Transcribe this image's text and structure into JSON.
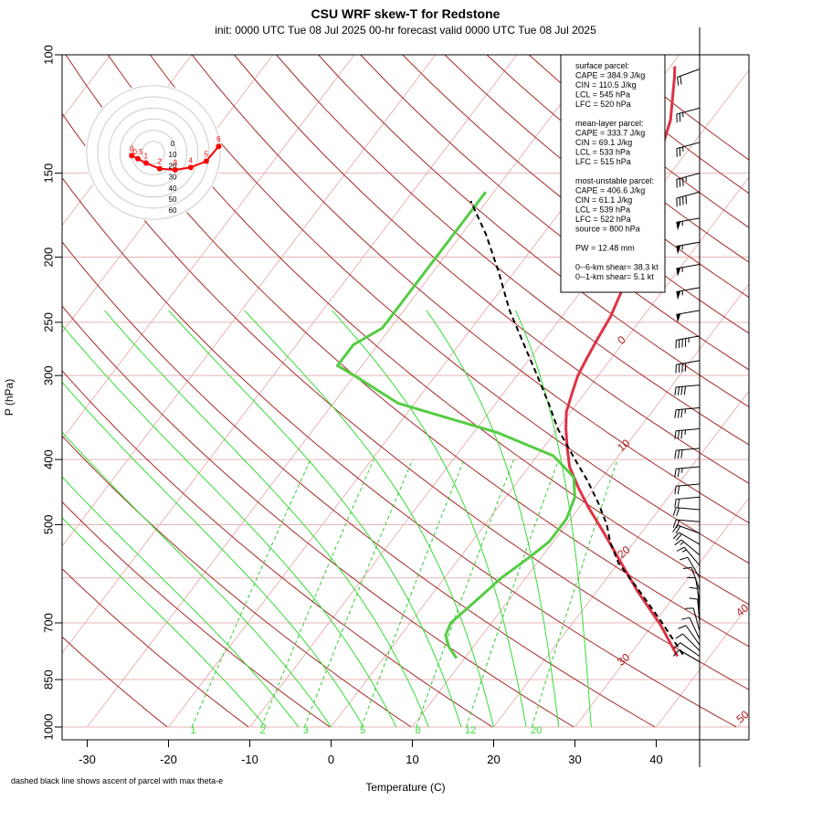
{
  "title": "CSU WRF skew-T for Redstone",
  "subtitle": "init: 0000 UTC Tue 08 Jul 2025     00-hr forecast valid 0000 UTC Tue 08 Jul 2025",
  "footnote": "dashed black line shows ascent of parcel with max theta-e",
  "chart_data": {
    "type": "line",
    "xlabel": "Temperature (C)",
    "ylabel": "P (hPa)",
    "xlim": [
      -33,
      45
    ],
    "ylim": [
      1000,
      100
    ],
    "y_scale": "log",
    "x_ticks": [
      "-30",
      "-20",
      "-10",
      "0",
      "10",
      "20",
      "30",
      "40"
    ],
    "y_ticks": [
      {
        "p": 100,
        "label": "100"
      },
      {
        "p": 150,
        "label": "150"
      },
      {
        "p": 200,
        "label": "200"
      },
      {
        "p": 250,
        "label": "250"
      },
      {
        "p": 300,
        "label": "300"
      },
      {
        "p": 400,
        "label": "400"
      },
      {
        "p": 500,
        "label": "500"
      },
      {
        "p": 700,
        "label": "700"
      },
      {
        "p": 850,
        "label": "850"
      },
      {
        "p": 1000,
        "label": "1000"
      }
    ],
    "isotherm_labels": [
      {
        "t": -10,
        "label": "-10"
      },
      {
        "t": 0,
        "label": "0"
      },
      {
        "t": 10,
        "label": "10"
      },
      {
        "t": 20,
        "label": "20"
      },
      {
        "t": 30,
        "label": "30"
      },
      {
        "t": 40,
        "label": "40"
      },
      {
        "t": 50,
        "label": "50"
      }
    ],
    "mixing_ratio_labels": [
      "1",
      "2",
      "3",
      "5",
      "8",
      "12",
      "20"
    ],
    "colors": {
      "temperature": "#dd3344",
      "dewpoint": "#55cc44",
      "parcel": "#000000",
      "isotherm": "#b22222",
      "dry_adiabat": "#a52a2a",
      "moist_adiabat": "#33dd33",
      "mixing_ratio": "#33cc33",
      "grid": "#e8b4b4"
    },
    "series": [
      {
        "name": "temperature",
        "points": [
          [
            36,
            785
          ],
          [
            31,
            705
          ],
          [
            25,
            628
          ],
          [
            19.5,
            560
          ],
          [
            15,
            510
          ],
          [
            11,
            470
          ],
          [
            8,
            440
          ],
          [
            5,
            410
          ],
          [
            3,
            385
          ],
          [
            1,
            360
          ],
          [
            -0.5,
            340
          ],
          [
            -1.5,
            320
          ],
          [
            -2.5,
            300
          ],
          [
            -3,
            283
          ],
          [
            -3.5,
            265
          ],
          [
            -4,
            245
          ],
          [
            -5,
            225
          ],
          [
            -6.5,
            205
          ],
          [
            -8.5,
            185
          ],
          [
            -10.5,
            165
          ],
          [
            -12,
            150
          ],
          [
            -13.5,
            137
          ],
          [
            -15,
            125
          ],
          [
            -17,
            115
          ],
          [
            -18.5,
            108
          ],
          [
            -19.5,
            104
          ]
        ]
      },
      {
        "name": "dewpoint",
        "points": [
          [
            9,
            790
          ],
          [
            7,
            760
          ],
          [
            5.5,
            730
          ],
          [
            5,
            700
          ],
          [
            6,
            650
          ],
          [
            7,
            600
          ],
          [
            8.5,
            560
          ],
          [
            9.5,
            530
          ],
          [
            9.5,
            490
          ],
          [
            8.5,
            455
          ],
          [
            6.5,
            425
          ],
          [
            2,
            395
          ],
          [
            -7,
            365
          ],
          [
            -22,
            330
          ],
          [
            -30,
            300
          ],
          [
            -33,
            290
          ],
          [
            -33,
            270
          ],
          [
            -31,
            255
          ],
          [
            -31,
            235
          ],
          [
            -31,
            210
          ],
          [
            -31,
            185
          ],
          [
            -31,
            160
          ]
        ]
      },
      {
        "name": "parcel",
        "points": [
          [
            36.5,
            780
          ],
          [
            31,
            700
          ],
          [
            25,
            625
          ],
          [
            20,
            570
          ],
          [
            17,
            530
          ],
          [
            15,
            500
          ],
          [
            12,
            465
          ],
          [
            8.5,
            430
          ],
          [
            5,
            400
          ],
          [
            0,
            360
          ],
          [
            -3.5,
            330
          ],
          [
            -7.5,
            300
          ],
          [
            -12,
            270
          ],
          [
            -17,
            240
          ],
          [
            -22,
            210
          ],
          [
            -27,
            185
          ],
          [
            -32,
            165
          ]
        ]
      }
    ],
    "winds": [
      {
        "p": 105,
        "spd": 20,
        "dir": 250
      },
      {
        "p": 120,
        "spd": 25,
        "dir": 255
      },
      {
        "p": 135,
        "spd": 25,
        "dir": 255
      },
      {
        "p": 150,
        "spd": 35,
        "dir": 255
      },
      {
        "p": 160,
        "spd": 40,
        "dir": 255
      },
      {
        "p": 175,
        "spd": 55,
        "dir": 260
      },
      {
        "p": 190,
        "spd": 55,
        "dir": 260
      },
      {
        "p": 205,
        "spd": 55,
        "dir": 260
      },
      {
        "p": 222,
        "spd": 55,
        "dir": 260
      },
      {
        "p": 240,
        "spd": 50,
        "dir": 260
      },
      {
        "p": 262,
        "spd": 45,
        "dir": 260
      },
      {
        "p": 285,
        "spd": 40,
        "dir": 260
      },
      {
        "p": 310,
        "spd": 40,
        "dir": 265
      },
      {
        "p": 335,
        "spd": 35,
        "dir": 265
      },
      {
        "p": 360,
        "spd": 35,
        "dir": 265
      },
      {
        "p": 385,
        "spd": 30,
        "dir": 265
      },
      {
        "p": 410,
        "spd": 25,
        "dir": 265
      },
      {
        "p": 435,
        "spd": 20,
        "dir": 265
      },
      {
        "p": 455,
        "spd": 20,
        "dir": 265
      },
      {
        "p": 475,
        "spd": 20,
        "dir": 275
      },
      {
        "p": 495,
        "spd": 20,
        "dir": 275
      },
      {
        "p": 515,
        "spd": 20,
        "dir": 290
      },
      {
        "p": 535,
        "spd": 20,
        "dir": 300
      },
      {
        "p": 555,
        "spd": 15,
        "dir": 310
      },
      {
        "p": 575,
        "spd": 15,
        "dir": 320
      },
      {
        "p": 600,
        "spd": 10,
        "dir": 330
      },
      {
        "p": 625,
        "spd": 10,
        "dir": 340
      },
      {
        "p": 650,
        "spd": 10,
        "dir": 350
      },
      {
        "p": 675,
        "spd": 10,
        "dir": 355
      },
      {
        "p": 700,
        "spd": 10,
        "dir": 355
      },
      {
        "p": 720,
        "spd": 10,
        "dir": 345
      },
      {
        "p": 740,
        "spd": 10,
        "dir": 335
      },
      {
        "p": 755,
        "spd": 10,
        "dir": 325
      },
      {
        "p": 770,
        "spd": 10,
        "dir": 315
      },
      {
        "p": 785,
        "spd": 10,
        "dir": 305
      },
      {
        "p": 800,
        "spd": 10,
        "dir": 300
      }
    ],
    "hodograph": {
      "ring_labels": [
        "0",
        "10",
        "20",
        "30",
        "40",
        "50",
        "60"
      ],
      "points": [
        {
          "label": "0",
          "u": -3.5,
          "v": -0.5
        },
        {
          "label": "0.5",
          "u": -2.5,
          "v": -1.0
        },
        {
          "label": "1",
          "u": -1.2,
          "v": -1.7
        },
        {
          "label": "2",
          "u": 1.0,
          "v": -2.6
        },
        {
          "label": "3",
          "u": 3.5,
          "v": -2.8
        },
        {
          "label": "4",
          "u": 6.0,
          "v": -2.4
        },
        {
          "label": "5",
          "u": 8.5,
          "v": -1.4
        },
        {
          "label": "6",
          "u": 10.5,
          "v": 1.0
        }
      ]
    }
  },
  "info_box": {
    "lines": [
      "surface parcel:",
      "CAPE = 384.9 J/kg",
      "CIN = 110.5 J/kg",
      "LCL = 545 hPa",
      "LFC = 520 hPa",
      "",
      "mean-layer parcel:",
      "CAPE = 333.7 J/kg",
      "CIN = 69.1 J/kg",
      "LCL = 533 hPa",
      "LFC = 515 hPa",
      "",
      "most-unstable parcel:",
      "CAPE = 406.6 J/kg",
      "CIN = 61.1 J/kg",
      "LCL = 539 hPa",
      "LFC = 522 hPa",
      "source = 800 hPa",
      "",
      "PW =   12.48 mm",
      "",
      "0--6-km shear= 38.3 kt",
      "0--1-km shear= 5.1 kt"
    ]
  }
}
